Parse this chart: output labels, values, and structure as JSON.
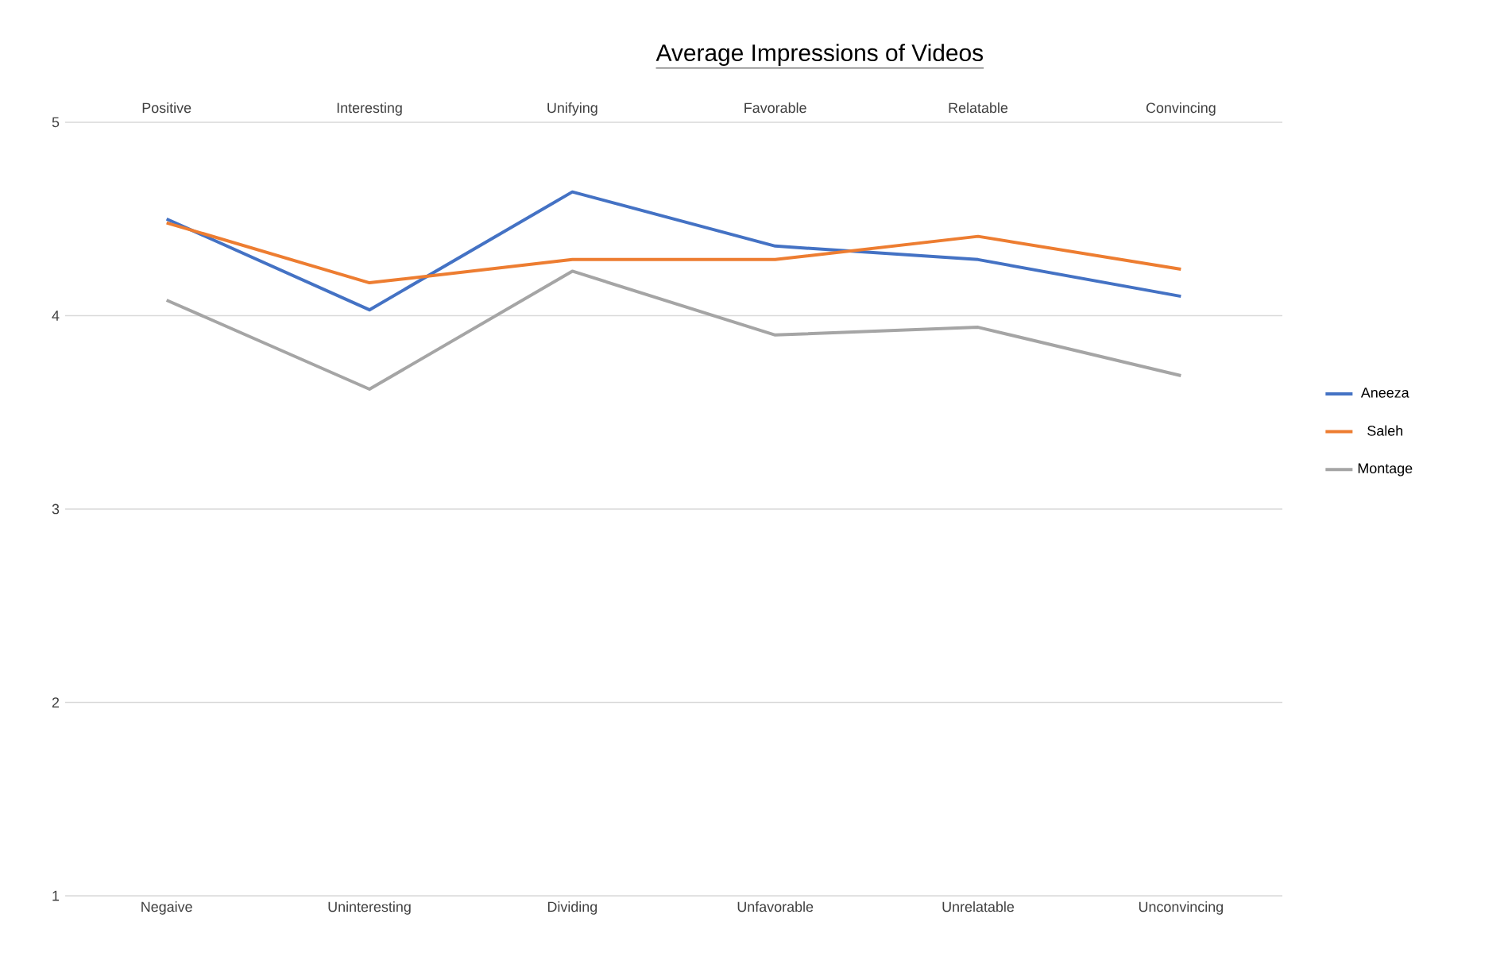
{
  "chart_data": {
    "type": "line",
    "title": "Average Impressions of Videos",
    "categories": [
      "Negaive",
      "Uninteresting",
      "Dividing",
      "Unfavorable",
      "Unrelatable",
      "Unconvincing"
    ],
    "annotations": [
      "Positive",
      "Interesting",
      "Unifying",
      "Favorable",
      "Relatable",
      "Convincing"
    ],
    "ylim": [
      1,
      5
    ],
    "yticks": [
      1,
      2,
      3,
      4,
      5
    ],
    "series": [
      {
        "name": "Aneeza",
        "color": "#4472c4",
        "values": [
          4.5,
          4.03,
          4.64,
          4.36,
          4.29,
          4.1
        ]
      },
      {
        "name": "Saleh",
        "color": "#ed7d31",
        "values": [
          4.48,
          4.17,
          4.29,
          4.29,
          4.41,
          4.24
        ]
      },
      {
        "name": "Montage",
        "color": "#a5a5a5",
        "values": [
          4.08,
          3.62,
          4.23,
          3.9,
          3.94,
          3.69
        ]
      }
    ],
    "grid": "y",
    "legend": "right",
    "marker": "none",
    "line_style": "solid"
  }
}
